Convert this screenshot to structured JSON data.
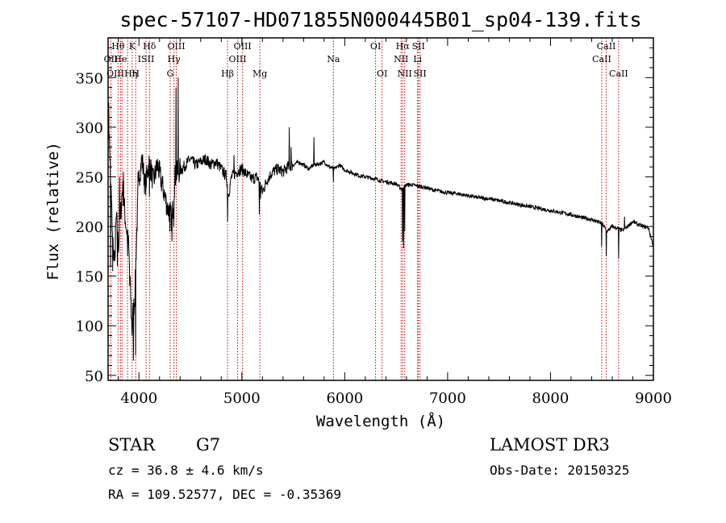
{
  "chart_data": {
    "type": "line",
    "title": "spec-57107-HD071855N000445B01_sp04-139.fits",
    "xlabel": "Wavelength (Å)",
    "ylabel": "Flux (relative)",
    "xlim": [
      3700,
      9000
    ],
    "ylim": [
      45,
      390
    ],
    "xticks": [
      4000,
      5000,
      6000,
      7000,
      8000,
      9000
    ],
    "yticks": [
      50,
      100,
      150,
      200,
      250,
      300,
      350
    ],
    "xtick_labels": [
      "4000",
      "5000",
      "6000",
      "7000",
      "8000",
      "9000"
    ],
    "ytick_labels": [
      "50",
      "100",
      "150",
      "200",
      "250",
      "300",
      "350"
    ],
    "series": [
      {
        "name": "flux",
        "color": "#000000",
        "anchors": [
          [
            3700,
            320
          ],
          [
            3720,
            265
          ],
          [
            3740,
            200
          ],
          [
            3760,
            160
          ],
          [
            3780,
            210
          ],
          [
            3800,
            180
          ],
          [
            3840,
            240
          ],
          [
            3870,
            205
          ],
          [
            3900,
            180
          ],
          [
            3930,
            100
          ],
          [
            3960,
            130
          ],
          [
            3980,
            200
          ],
          [
            4000,
            250
          ],
          [
            4030,
            268
          ],
          [
            4060,
            240
          ],
          [
            4100,
            265
          ],
          [
            4140,
            245
          ],
          [
            4180,
            262
          ],
          [
            4230,
            240
          ],
          [
            4280,
            218
          ],
          [
            4300,
            215
          ],
          [
            4320,
            205
          ],
          [
            4350,
            250
          ],
          [
            4380,
            255
          ],
          [
            4420,
            258
          ],
          [
            4450,
            262
          ],
          [
            4500,
            268
          ],
          [
            4550,
            262
          ],
          [
            4600,
            265
          ],
          [
            4650,
            268
          ],
          [
            4700,
            262
          ],
          [
            4750,
            265
          ],
          [
            4800,
            258
          ],
          [
            4850,
            250
          ],
          [
            4870,
            232
          ],
          [
            4900,
            250
          ],
          [
            4950,
            255
          ],
          [
            5000,
            258
          ],
          [
            5050,
            252
          ],
          [
            5100,
            248
          ],
          [
            5150,
            250
          ],
          [
            5200,
            235
          ],
          [
            5250,
            248
          ],
          [
            5300,
            255
          ],
          [
            5350,
            258
          ],
          [
            5400,
            255
          ],
          [
            5450,
            260
          ],
          [
            5500,
            262
          ],
          [
            5550,
            265
          ],
          [
            5600,
            262
          ],
          [
            5650,
            258
          ],
          [
            5700,
            262
          ],
          [
            5750,
            263
          ],
          [
            5800,
            265
          ],
          [
            5850,
            260
          ],
          [
            5900,
            258
          ],
          [
            5950,
            262
          ],
          [
            6000,
            257
          ],
          [
            6050,
            255
          ],
          [
            6100,
            253
          ],
          [
            6150,
            251
          ],
          [
            6200,
            250
          ],
          [
            6250,
            249
          ],
          [
            6300,
            248
          ],
          [
            6350,
            246
          ],
          [
            6400,
            245
          ],
          [
            6450,
            244
          ],
          [
            6500,
            243
          ],
          [
            6550,
            238
          ],
          [
            6600,
            242
          ],
          [
            6650,
            242
          ],
          [
            6700,
            241
          ],
          [
            6750,
            240
          ],
          [
            6800,
            239
          ],
          [
            6850,
            237
          ],
          [
            6900,
            236
          ],
          [
            6950,
            235
          ],
          [
            7000,
            234
          ],
          [
            7100,
            233
          ],
          [
            7200,
            231
          ],
          [
            7300,
            229
          ],
          [
            7400,
            228
          ],
          [
            7500,
            226
          ],
          [
            7600,
            224
          ],
          [
            7700,
            222
          ],
          [
            7800,
            220
          ],
          [
            7900,
            218
          ],
          [
            8000,
            216
          ],
          [
            8100,
            214
          ],
          [
            8200,
            212
          ],
          [
            8300,
            209
          ],
          [
            8400,
            207
          ],
          [
            8500,
            203
          ],
          [
            8550,
            195
          ],
          [
            8600,
            200
          ],
          [
            8650,
            198
          ],
          [
            8700,
            196
          ],
          [
            8750,
            200
          ],
          [
            8800,
            205
          ],
          [
            8850,
            202
          ],
          [
            8900,
            200
          ],
          [
            8950,
            199
          ],
          [
            9000,
            180
          ]
        ],
        "spikes": [
          [
            3705,
            325
          ],
          [
            3725,
            160
          ],
          [
            3745,
            155
          ],
          [
            3770,
            170
          ],
          [
            3790,
            160
          ],
          [
            3810,
            250
          ],
          [
            3850,
            255
          ],
          [
            3890,
            170
          ],
          [
            3910,
            140
          ],
          [
            3935,
            90
          ],
          [
            3945,
            65
          ],
          [
            3968,
            70
          ],
          [
            3990,
            255
          ],
          [
            4102,
            230
          ],
          [
            4300,
            195
          ],
          [
            4320,
            185
          ],
          [
            4340,
            200
          ],
          [
            4360,
            340
          ],
          [
            4380,
            350
          ],
          [
            4861,
            205
          ],
          [
            4925,
            272
          ],
          [
            5170,
            212
          ],
          [
            5183,
            228
          ],
          [
            5460,
            300
          ],
          [
            5480,
            280
          ],
          [
            5700,
            290
          ],
          [
            5890,
            245
          ],
          [
            6563,
            185
          ],
          [
            6570,
            178
          ],
          [
            6582,
            195
          ],
          [
            8498,
            180
          ],
          [
            8542,
            170
          ],
          [
            8662,
            168
          ],
          [
            8720,
            210
          ]
        ]
      }
    ],
    "line_groups": [
      {
        "row": 1,
        "labels": [
          [
            "Hθ",
            3797
          ],
          [
            "K",
            3934
          ],
          [
            "Hδ",
            4102
          ],
          [
            "OIII",
            4363
          ],
          [
            "OIII",
            5007
          ],
          [
            "OI",
            6300
          ],
          [
            "Hα",
            6563
          ],
          [
            "SII",
            6716
          ],
          [
            "CaII",
            8542
          ]
        ]
      },
      {
        "row": 2,
        "labels": [
          [
            "OII",
            3727
          ],
          [
            "He",
            3820
          ],
          [
            "ISII",
            4069
          ],
          [
            "Hγ",
            4340
          ],
          [
            "OIII",
            4959
          ],
          [
            "Na",
            5890
          ],
          [
            "NII",
            6548
          ],
          [
            "Li",
            6708
          ],
          [
            "CaII",
            8498
          ]
        ]
      },
      {
        "row": 3,
        "labels": [
          [
            "OIIIHη",
            3835
          ],
          [
            "H",
            3968
          ],
          [
            "G",
            4304
          ],
          [
            "Hβ",
            4861
          ],
          [
            "Mg",
            5175
          ],
          [
            "OI",
            6363
          ],
          [
            "NII",
            6583
          ],
          [
            "SII",
            6731
          ],
          [
            "CaII",
            8662
          ]
        ]
      }
    ],
    "marker_lines": [
      3727,
      3797,
      3820,
      3835,
      3889,
      3934,
      3968,
      4069,
      4102,
      4304,
      4340,
      4363,
      4861,
      4959,
      5007,
      5175,
      5890,
      6300,
      6363,
      6548,
      6563,
      6583,
      6708,
      6716,
      6731,
      8498,
      8542,
      8662
    ],
    "marker_color": "#cc0000",
    "grid": false
  },
  "info": {
    "object_type": "STAR",
    "subclass": "G7",
    "cz": "cz = 36.8 ± 4.6 km/s",
    "radec": "RA = 109.52577, DEC =  -0.35369",
    "survey": "LAMOST DR3",
    "obs_date": "Obs-Date: 20150325"
  }
}
